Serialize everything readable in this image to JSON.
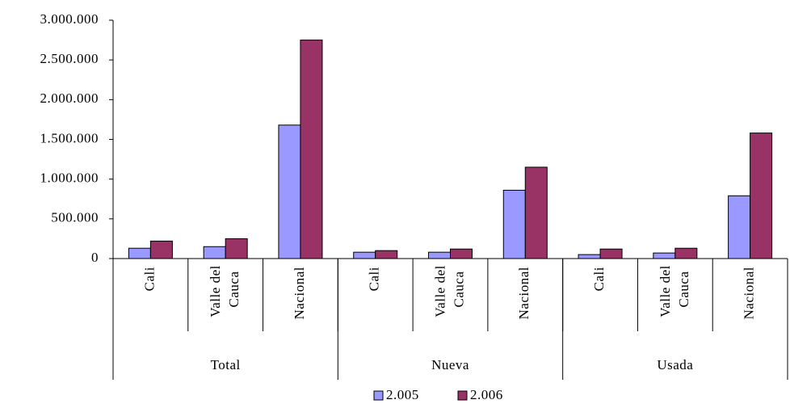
{
  "chart_data": {
    "type": "bar",
    "categories": [
      "Cali",
      "Valle del Cauca",
      "Nacional",
      "Cali",
      "Valle del Cauca",
      "Nacional",
      "Cali",
      "Valle del Cauca",
      "Nacional"
    ],
    "groups": [
      "Total",
      "Nueva",
      "Usada"
    ],
    "series": [
      {
        "name": "2.005",
        "color": "#9999ff",
        "values": [
          130000,
          150000,
          1680000,
          80000,
          80000,
          860000,
          50000,
          70000,
          790000
        ]
      },
      {
        "name": "2.006",
        "color": "#993366",
        "values": [
          220000,
          250000,
          2750000,
          100000,
          120000,
          1150000,
          120000,
          130000,
          1580000
        ]
      }
    ],
    "ylim": [
      0,
      3000000
    ],
    "yticks": [
      0,
      {
        "value": 500000,
        "label": "500.000"
      },
      {
        "value": 1000000,
        "label": "1.000.000"
      },
      {
        "value": 1500000,
        "label": "1.500.000"
      },
      {
        "value": 2000000,
        "label": "2.000.000"
      },
      {
        "value": 2500000,
        "label": "2.500.000"
      },
      {
        "value": 3000000,
        "label": "3.000.000"
      }
    ],
    "grid": false
  }
}
